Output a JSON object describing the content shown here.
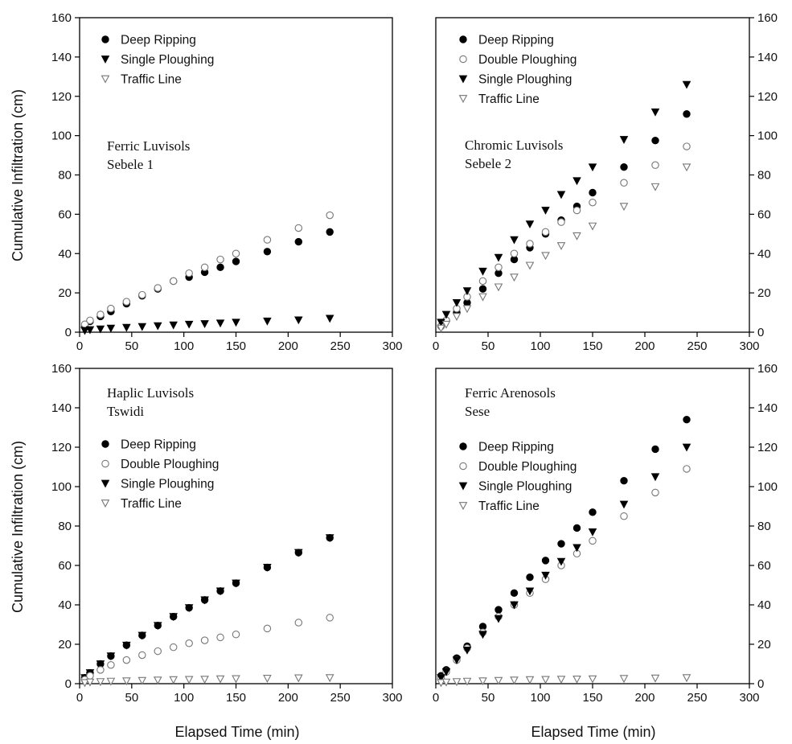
{
  "figure": {
    "ylabel": "Cumulative Infiltration (cm)",
    "xlabel": "Elapsed Time (min)"
  },
  "styles": {
    "Deep Ripping": {
      "marker": "circle-filled",
      "color": "#000000"
    },
    "Single Ploughing": {
      "marker": "triangle-down-filled",
      "color": "#000000"
    },
    "Double Ploughing": {
      "marker": "circle-open",
      "color": "#777777"
    },
    "Traffic Line": {
      "marker": "triangle-down-open",
      "color": "#777777"
    }
  },
  "chart_data": [
    {
      "type": "scatter",
      "annotation": [
        "Ferric Luvisols",
        "Sebele 1"
      ],
      "xlim": [
        0,
        300
      ],
      "ylim": [
        0,
        160
      ],
      "xticks": [
        0,
        50,
        100,
        150,
        200,
        250,
        300
      ],
      "yticks": [
        0,
        20,
        40,
        60,
        80,
        100,
        120,
        140,
        160
      ],
      "legend": [
        "Deep Ripping",
        "Single Ploughing",
        "Traffic Line"
      ],
      "series": [
        {
          "name": "Deep Ripping",
          "style": "circle-filled",
          "x": [
            5,
            10,
            20,
            30,
            45,
            60,
            75,
            90,
            105,
            120,
            135,
            150,
            180,
            210,
            240
          ],
          "y": [
            3,
            5.5,
            8,
            10.5,
            14.5,
            18.5,
            22,
            26,
            28,
            30.5,
            33,
            36,
            41,
            46,
            51
          ]
        },
        {
          "name": "Single Ploughing",
          "style": "circle-open",
          "x": [
            5,
            10,
            20,
            30,
            45,
            60,
            75,
            90,
            105,
            120,
            135,
            150,
            180,
            210,
            240
          ],
          "y": [
            4,
            6,
            9,
            12,
            15.5,
            19,
            22.5,
            26,
            30,
            33,
            37,
            40,
            47,
            53,
            59.5
          ]
        },
        {
          "name": "Traffic Line",
          "style": "triangle-down-filled",
          "x": [
            5,
            10,
            20,
            30,
            45,
            60,
            75,
            90,
            105,
            120,
            135,
            150,
            180,
            210,
            240
          ],
          "y": [
            0.8,
            1.2,
            1.6,
            2,
            2.4,
            2.8,
            3.2,
            3.6,
            4,
            4.3,
            4.6,
            5,
            5.6,
            6.2,
            7
          ]
        }
      ]
    },
    {
      "type": "scatter",
      "annotation": [
        "Chromic Luvisols",
        "Sebele 2"
      ],
      "xlim": [
        0,
        300
      ],
      "ylim": [
        0,
        160
      ],
      "xticks": [
        0,
        50,
        100,
        150,
        200,
        250,
        300
      ],
      "yticks": [
        0,
        20,
        40,
        60,
        80,
        100,
        120,
        140,
        160
      ],
      "legend": [
        "Deep Ripping",
        "Double Ploughing",
        "Single Ploughing",
        "Traffic Line"
      ],
      "series": [
        {
          "name": "Deep Ripping",
          "style": "circle-filled",
          "x": [
            5,
            10,
            20,
            30,
            45,
            60,
            75,
            90,
            105,
            120,
            135,
            150,
            180,
            210,
            240
          ],
          "y": [
            3,
            6,
            10,
            15,
            22,
            30,
            37,
            43,
            50,
            57,
            64,
            71,
            84,
            97.5,
            111
          ]
        },
        {
          "name": "Double Ploughing",
          "style": "circle-open",
          "x": [
            5,
            10,
            20,
            30,
            45,
            60,
            75,
            90,
            105,
            120,
            135,
            150,
            180,
            210,
            240
          ],
          "y": [
            3,
            6,
            12,
            18,
            26,
            33,
            40,
            45,
            51,
            56,
            62,
            66,
            76,
            85,
            94.5
          ]
        },
        {
          "name": "Single Ploughing",
          "style": "triangle-down-filled",
          "x": [
            5,
            10,
            20,
            30,
            45,
            60,
            75,
            90,
            105,
            120,
            135,
            150,
            180,
            210,
            240
          ],
          "y": [
            5,
            9,
            15,
            21,
            31,
            38,
            47,
            55,
            62,
            70,
            77,
            84,
            98,
            112,
            126
          ]
        },
        {
          "name": "Traffic Line",
          "style": "triangle-down-open",
          "x": [
            5,
            10,
            20,
            30,
            45,
            60,
            75,
            90,
            105,
            120,
            135,
            150,
            180,
            210,
            240
          ],
          "y": [
            2,
            4,
            8,
            12,
            18,
            23,
            28,
            34,
            39,
            44,
            49,
            54,
            64,
            74,
            84
          ]
        }
      ]
    },
    {
      "type": "scatter",
      "annotation": [
        "Haplic Luvisols",
        "Tswidi"
      ],
      "xlim": [
        0,
        300
      ],
      "ylim": [
        0,
        160
      ],
      "xticks": [
        0,
        50,
        100,
        150,
        200,
        250,
        300
      ],
      "yticks": [
        0,
        20,
        40,
        60,
        80,
        100,
        120,
        140,
        160
      ],
      "legend": [
        "Deep Ripping",
        "Double Ploughing",
        "Single Ploughing",
        "Traffic Line"
      ],
      "series": [
        {
          "name": "Single Ploughing",
          "style": "triangle-down-filled",
          "x": [
            5,
            10,
            20,
            30,
            45,
            60,
            75,
            90,
            105,
            120,
            135,
            150,
            180,
            210,
            240
          ],
          "y": [
            3,
            5.5,
            10,
            14,
            19.5,
            24.5,
            29.5,
            34,
            38.5,
            42.5,
            47,
            51,
            59,
            66.5,
            74
          ]
        },
        {
          "name": "Deep Ripping",
          "style": "circle-filled",
          "x": [
            5,
            10,
            20,
            30,
            45,
            60,
            75,
            90,
            105,
            120,
            135,
            150,
            180,
            210,
            240
          ],
          "y": [
            3,
            5.5,
            10,
            14,
            19.5,
            24.5,
            29.5,
            34,
            38.5,
            42.5,
            47,
            51,
            59,
            66.5,
            74
          ]
        },
        {
          "name": "Double Ploughing",
          "style": "circle-open",
          "x": [
            5,
            10,
            20,
            30,
            45,
            60,
            75,
            90,
            105,
            120,
            135,
            150,
            180,
            210,
            240
          ],
          "y": [
            2,
            4,
            7,
            9.5,
            12,
            14.5,
            16.5,
            18.5,
            20.5,
            22,
            23.5,
            25,
            28,
            31,
            33.5
          ]
        },
        {
          "name": "Traffic Line",
          "style": "triangle-down-open",
          "x": [
            5,
            10,
            20,
            30,
            45,
            60,
            75,
            90,
            105,
            120,
            135,
            150,
            180,
            210,
            240
          ],
          "y": [
            0.5,
            0.8,
            1,
            1.2,
            1.4,
            1.6,
            1.8,
            2,
            2.1,
            2.2,
            2.4,
            2.5,
            2.7,
            2.9,
            3
          ]
        }
      ]
    },
    {
      "type": "scatter",
      "annotation": [
        "Ferric Arenosols",
        "Sese"
      ],
      "xlim": [
        0,
        300
      ],
      "ylim": [
        0,
        160
      ],
      "xticks": [
        0,
        50,
        100,
        150,
        200,
        250,
        300
      ],
      "yticks": [
        0,
        20,
        40,
        60,
        80,
        100,
        120,
        140,
        160
      ],
      "legend": [
        "Deep Ripping",
        "Double Ploughing",
        "Single Ploughing",
        "Traffic Line"
      ],
      "series": [
        {
          "name": "Deep Ripping",
          "style": "circle-filled",
          "x": [
            5,
            10,
            20,
            30,
            45,
            60,
            75,
            90,
            105,
            120,
            135,
            150,
            180,
            210,
            240
          ],
          "y": [
            4,
            7,
            13,
            19,
            29,
            37.5,
            46,
            54,
            62.5,
            71,
            79,
            87,
            103,
            119,
            134
          ]
        },
        {
          "name": "Double Ploughing",
          "style": "circle-open",
          "x": [
            5,
            10,
            20,
            30,
            45,
            60,
            75,
            90,
            105,
            120,
            135,
            150,
            180,
            210,
            240
          ],
          "y": [
            3,
            6,
            12,
            18,
            26,
            34,
            40,
            46,
            53,
            60,
            66,
            72.5,
            85,
            97,
            109
          ]
        },
        {
          "name": "Single Ploughing",
          "style": "triangle-down-filled",
          "x": [
            5,
            10,
            20,
            30,
            45,
            60,
            75,
            90,
            105,
            120,
            135,
            150,
            180,
            210,
            240
          ],
          "y": [
            3,
            6,
            12,
            17,
            25,
            33,
            40,
            47,
            55,
            62,
            69,
            77,
            91,
            105,
            120
          ]
        },
        {
          "name": "Traffic Line",
          "style": "triangle-down-open",
          "x": [
            5,
            10,
            20,
            30,
            45,
            60,
            75,
            90,
            105,
            120,
            135,
            150,
            180,
            210,
            240
          ],
          "y": [
            0.5,
            0.8,
            1,
            1.2,
            1.4,
            1.6,
            1.8,
            2,
            2.1,
            2.2,
            2.3,
            2.4,
            2.6,
            2.8,
            3
          ]
        }
      ]
    }
  ]
}
